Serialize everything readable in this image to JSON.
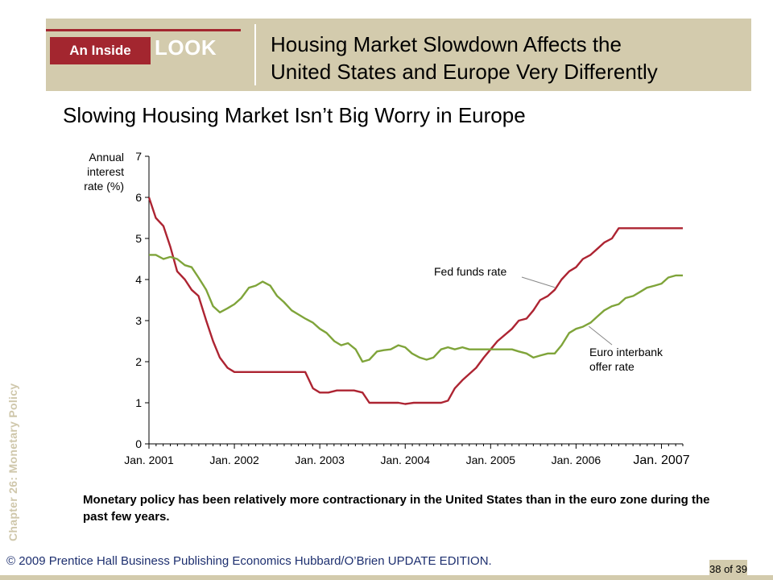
{
  "header": {
    "badge_left": "An Inside",
    "badge_right": "LOOK",
    "title_line1": "Housing Market Slowdown Affects the",
    "title_line2": "United States and Europe Very Differently"
  },
  "subtitle": "Slowing Housing Market Isn’t Big Worry in Europe",
  "side_label": "Chapter 26: Monetary Policy",
  "caption": "Monetary policy has been relatively more contractionary in the United States than in the euro zone during the past few years.",
  "footer": "© 2009 Prentice Hall Business Publishing Economics  Hubbard/O’Brien UPDATE EDITION.",
  "page": "38 of 39",
  "colors": {
    "fed": "#ad2432",
    "euro": "#7fa43a",
    "band": "#d3cbad",
    "accent": "#a3262f"
  },
  "chart_data": {
    "type": "line",
    "ylabel": "Annual interest rate (%)",
    "ylabel_lines": [
      "Annual",
      "interest",
      "rate (%)"
    ],
    "ylim": [
      0,
      7
    ],
    "yticks": [
      "0",
      "1",
      "2",
      "3",
      "4",
      "5",
      "6",
      "7"
    ],
    "xlim": [
      2001.0,
      2007.25
    ],
    "xticks": [
      {
        "label": "Jan. 2001",
        "x": 2001.0
      },
      {
        "label": "Jan. 2002",
        "x": 2002.0
      },
      {
        "label": "Jan. 2003",
        "x": 2003.0
      },
      {
        "label": "Jan. 2004",
        "x": 2004.0
      },
      {
        "label": "Jan. 2005",
        "x": 2005.0
      },
      {
        "label": "Jan. 2006",
        "x": 2006.0
      },
      {
        "label": "Jan. 2007",
        "x": 2007.0
      }
    ],
    "series": [
      {
        "name": "Fed funds rate",
        "color": "#ad2432",
        "points": [
          [
            2001.0,
            6.0
          ],
          [
            2001.08,
            5.5
          ],
          [
            2001.17,
            5.3
          ],
          [
            2001.25,
            4.8
          ],
          [
            2001.33,
            4.2
          ],
          [
            2001.42,
            4.0
          ],
          [
            2001.5,
            3.75
          ],
          [
            2001.58,
            3.6
          ],
          [
            2001.67,
            3.0
          ],
          [
            2001.75,
            2.5
          ],
          [
            2001.83,
            2.1
          ],
          [
            2001.92,
            1.85
          ],
          [
            2002.0,
            1.75
          ],
          [
            2002.25,
            1.75
          ],
          [
            2002.5,
            1.75
          ],
          [
            2002.75,
            1.75
          ],
          [
            2002.83,
            1.75
          ],
          [
            2002.92,
            1.35
          ],
          [
            2003.0,
            1.25
          ],
          [
            2003.1,
            1.25
          ],
          [
            2003.2,
            1.3
          ],
          [
            2003.4,
            1.3
          ],
          [
            2003.5,
            1.25
          ],
          [
            2003.58,
            1.0
          ],
          [
            2003.67,
            1.0
          ],
          [
            2003.75,
            1.0
          ],
          [
            2003.92,
            1.0
          ],
          [
            2004.0,
            0.97
          ],
          [
            2004.1,
            1.0
          ],
          [
            2004.33,
            1.0
          ],
          [
            2004.42,
            1.0
          ],
          [
            2004.5,
            1.05
          ],
          [
            2004.58,
            1.35
          ],
          [
            2004.67,
            1.55
          ],
          [
            2004.83,
            1.85
          ],
          [
            2004.92,
            2.1
          ],
          [
            2005.0,
            2.3
          ],
          [
            2005.08,
            2.5
          ],
          [
            2005.25,
            2.8
          ],
          [
            2005.33,
            3.0
          ],
          [
            2005.42,
            3.05
          ],
          [
            2005.5,
            3.25
          ],
          [
            2005.58,
            3.5
          ],
          [
            2005.67,
            3.6
          ],
          [
            2005.75,
            3.75
          ],
          [
            2005.83,
            4.0
          ],
          [
            2005.92,
            4.2
          ],
          [
            2006.0,
            4.3
          ],
          [
            2006.08,
            4.5
          ],
          [
            2006.17,
            4.6
          ],
          [
            2006.25,
            4.75
          ],
          [
            2006.33,
            4.9
          ],
          [
            2006.42,
            5.0
          ],
          [
            2006.5,
            5.25
          ],
          [
            2006.75,
            5.25
          ],
          [
            2007.0,
            5.25
          ],
          [
            2007.25,
            5.25
          ]
        ]
      },
      {
        "name": "Euro interbank offer rate",
        "color": "#7fa43a",
        "points": [
          [
            2001.0,
            4.6
          ],
          [
            2001.08,
            4.6
          ],
          [
            2001.17,
            4.5
          ],
          [
            2001.25,
            4.55
          ],
          [
            2001.33,
            4.5
          ],
          [
            2001.42,
            4.35
          ],
          [
            2001.5,
            4.3
          ],
          [
            2001.58,
            4.05
          ],
          [
            2001.67,
            3.75
          ],
          [
            2001.75,
            3.35
          ],
          [
            2001.83,
            3.2
          ],
          [
            2001.92,
            3.3
          ],
          [
            2002.0,
            3.4
          ],
          [
            2002.08,
            3.55
          ],
          [
            2002.17,
            3.8
          ],
          [
            2002.25,
            3.85
          ],
          [
            2002.33,
            3.95
          ],
          [
            2002.42,
            3.85
          ],
          [
            2002.5,
            3.6
          ],
          [
            2002.58,
            3.45
          ],
          [
            2002.67,
            3.25
          ],
          [
            2002.75,
            3.15
          ],
          [
            2002.83,
            3.05
          ],
          [
            2002.92,
            2.95
          ],
          [
            2003.0,
            2.8
          ],
          [
            2003.08,
            2.7
          ],
          [
            2003.17,
            2.5
          ],
          [
            2003.25,
            2.4
          ],
          [
            2003.33,
            2.45
          ],
          [
            2003.42,
            2.3
          ],
          [
            2003.5,
            2.0
          ],
          [
            2003.58,
            2.05
          ],
          [
            2003.67,
            2.25
          ],
          [
            2003.75,
            2.28
          ],
          [
            2003.83,
            2.3
          ],
          [
            2003.92,
            2.4
          ],
          [
            2004.0,
            2.35
          ],
          [
            2004.08,
            2.2
          ],
          [
            2004.17,
            2.1
          ],
          [
            2004.25,
            2.05
          ],
          [
            2004.33,
            2.1
          ],
          [
            2004.42,
            2.3
          ],
          [
            2004.5,
            2.35
          ],
          [
            2004.58,
            2.3
          ],
          [
            2004.67,
            2.35
          ],
          [
            2004.75,
            2.3
          ],
          [
            2004.83,
            2.3
          ],
          [
            2004.92,
            2.3
          ],
          [
            2005.0,
            2.3
          ],
          [
            2005.08,
            2.3
          ],
          [
            2005.17,
            2.3
          ],
          [
            2005.25,
            2.3
          ],
          [
            2005.33,
            2.25
          ],
          [
            2005.42,
            2.2
          ],
          [
            2005.5,
            2.1
          ],
          [
            2005.58,
            2.15
          ],
          [
            2005.67,
            2.2
          ],
          [
            2005.75,
            2.2
          ],
          [
            2005.83,
            2.4
          ],
          [
            2005.92,
            2.7
          ],
          [
            2006.0,
            2.8
          ],
          [
            2006.08,
            2.85
          ],
          [
            2006.17,
            2.95
          ],
          [
            2006.25,
            3.1
          ],
          [
            2006.33,
            3.25
          ],
          [
            2006.42,
            3.35
          ],
          [
            2006.5,
            3.4
          ],
          [
            2006.58,
            3.55
          ],
          [
            2006.67,
            3.6
          ],
          [
            2006.75,
            3.7
          ],
          [
            2006.83,
            3.8
          ],
          [
            2006.92,
            3.85
          ],
          [
            2007.0,
            3.9
          ],
          [
            2007.08,
            4.05
          ],
          [
            2007.17,
            4.1
          ],
          [
            2007.25,
            4.1
          ]
        ]
      }
    ],
    "annotations": [
      {
        "text": "Fed funds rate",
        "series": "Fed funds rate"
      },
      {
        "text": "Euro interbank offer rate",
        "series": "Euro interbank offer rate",
        "lines": [
          "Euro interbank",
          "offer rate"
        ]
      }
    ]
  }
}
